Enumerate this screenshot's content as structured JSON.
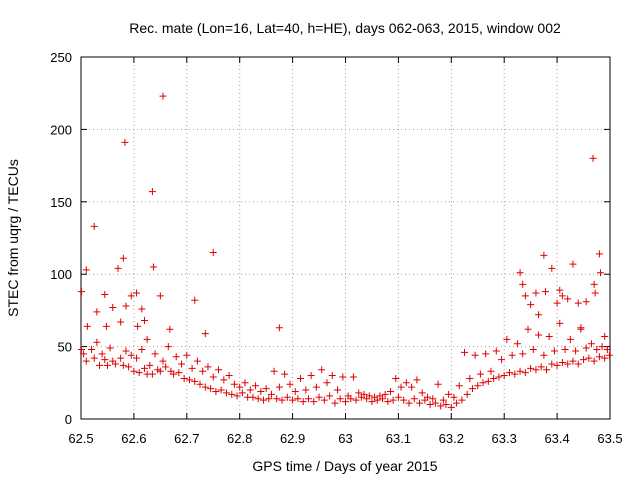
{
  "chart_data": {
    "type": "scatter",
    "title": "Rec. mate (Lon=16, Lat=40, h=HE), days 062-063, 2015, window 002",
    "xlabel": "GPS time / Days of year 2015",
    "ylabel": "STEC from uqrg / TECUs",
    "xlim": [
      62.5,
      63.5
    ],
    "ylim": [
      0,
      250
    ],
    "xticks": [
      62.5,
      62.6,
      62.7,
      62.8,
      62.9,
      63.0,
      63.1,
      63.2,
      63.3,
      63.4,
      63.5
    ],
    "xtick_labels": [
      "62.5",
      "62.6",
      "62.7",
      "62.8",
      "62.9",
      "63",
      "63.1",
      "63.2",
      "63.3",
      "63.4",
      "63.5"
    ],
    "yticks": [
      0,
      50,
      100,
      150,
      200,
      250
    ],
    "ytick_labels": [
      "0",
      "50",
      "100",
      "150",
      "200",
      "250"
    ],
    "grid": true,
    "marker": "+",
    "color": "#e00000",
    "points": [
      [
        62.501,
        88
      ],
      [
        62.51,
        103
      ],
      [
        62.512,
        64
      ],
      [
        62.525,
        133
      ],
      [
        62.53,
        74
      ],
      [
        62.545,
        86
      ],
      [
        62.548,
        64
      ],
      [
        62.56,
        77
      ],
      [
        62.57,
        104
      ],
      [
        62.575,
        67
      ],
      [
        62.58,
        111
      ],
      [
        62.583,
        191
      ],
      [
        62.585,
        78
      ],
      [
        62.595,
        85
      ],
      [
        62.605,
        87
      ],
      [
        62.607,
        64
      ],
      [
        62.615,
        76
      ],
      [
        62.62,
        68
      ],
      [
        62.625,
        55
      ],
      [
        62.635,
        157
      ],
      [
        62.637,
        105
      ],
      [
        62.65,
        85
      ],
      [
        62.655,
        223
      ],
      [
        62.668,
        62
      ],
      [
        62.715,
        82
      ],
      [
        62.735,
        59
      ],
      [
        62.75,
        115
      ],
      [
        62.875,
        63
      ],
      [
        63.33,
        101
      ],
      [
        63.335,
        93
      ],
      [
        63.34,
        85
      ],
      [
        63.35,
        79
      ],
      [
        63.36,
        87
      ],
      [
        63.365,
        72
      ],
      [
        63.375,
        113
      ],
      [
        63.378,
        88
      ],
      [
        63.39,
        104
      ],
      [
        63.4,
        80
      ],
      [
        63.405,
        89
      ],
      [
        63.41,
        85
      ],
      [
        63.42,
        83
      ],
      [
        63.43,
        107
      ],
      [
        63.44,
        80
      ],
      [
        63.445,
        63
      ],
      [
        63.455,
        81
      ],
      [
        63.468,
        180
      ],
      [
        63.47,
        93
      ],
      [
        63.472,
        87
      ],
      [
        63.48,
        114
      ],
      [
        63.482,
        101
      ],
      [
        63.49,
        57
      ],
      [
        62.501,
        48
      ],
      [
        62.505,
        45
      ],
      [
        62.51,
        40
      ],
      [
        62.52,
        48
      ],
      [
        62.525,
        42
      ],
      [
        62.53,
        53
      ],
      [
        62.535,
        37
      ],
      [
        62.54,
        45
      ],
      [
        62.545,
        41
      ],
      [
        62.55,
        37
      ],
      [
        62.555,
        49
      ],
      [
        62.56,
        40
      ],
      [
        62.565,
        38
      ],
      [
        62.575,
        42
      ],
      [
        62.58,
        37
      ],
      [
        62.585,
        47
      ],
      [
        62.59,
        36
      ],
      [
        62.595,
        44
      ],
      [
        62.6,
        33
      ],
      [
        62.605,
        42
      ],
      [
        62.61,
        32
      ],
      [
        62.615,
        48
      ],
      [
        62.62,
        35
      ],
      [
        62.625,
        31
      ],
      [
        62.63,
        37
      ],
      [
        62.635,
        31
      ],
      [
        62.64,
        45
      ],
      [
        62.645,
        34
      ],
      [
        62.65,
        33
      ],
      [
        62.655,
        40
      ],
      [
        62.66,
        36
      ],
      [
        62.665,
        50
      ],
      [
        62.67,
        33
      ],
      [
        62.675,
        31
      ],
      [
        62.68,
        43
      ],
      [
        62.685,
        32
      ],
      [
        62.69,
        38
      ],
      [
        62.695,
        28
      ],
      [
        62.7,
        44
      ],
      [
        62.705,
        27
      ],
      [
        62.71,
        35
      ],
      [
        62.715,
        26
      ],
      [
        62.72,
        40
      ],
      [
        62.725,
        24
      ],
      [
        62.73,
        33
      ],
      [
        62.735,
        22
      ],
      [
        62.74,
        36
      ],
      [
        62.745,
        21
      ],
      [
        62.75,
        29
      ],
      [
        62.755,
        19
      ],
      [
        62.76,
        34
      ],
      [
        62.765,
        20
      ],
      [
        62.77,
        27
      ],
      [
        62.775,
        18
      ],
      [
        62.78,
        30
      ],
      [
        62.785,
        17
      ],
      [
        62.79,
        24
      ],
      [
        62.795,
        16
      ],
      [
        62.8,
        22
      ],
      [
        62.805,
        18
      ],
      [
        62.81,
        25
      ],
      [
        62.815,
        15
      ],
      [
        62.82,
        20
      ],
      [
        62.825,
        15
      ],
      [
        62.83,
        23
      ],
      [
        62.835,
        14
      ],
      [
        62.84,
        19
      ],
      [
        62.845,
        13
      ],
      [
        62.85,
        21
      ],
      [
        62.855,
        14
      ],
      [
        62.86,
        17
      ],
      [
        62.865,
        33
      ],
      [
        62.87,
        14
      ],
      [
        62.875,
        22
      ],
      [
        62.88,
        13
      ],
      [
        62.885,
        31
      ],
      [
        62.89,
        15
      ],
      [
        62.895,
        24
      ],
      [
        62.9,
        13
      ],
      [
        62.905,
        19
      ],
      [
        62.91,
        14
      ],
      [
        62.915,
        28
      ],
      [
        62.92,
        12
      ],
      [
        62.925,
        20
      ],
      [
        62.93,
        14
      ],
      [
        62.935,
        30
      ],
      [
        62.94,
        12
      ],
      [
        62.945,
        22
      ],
      [
        62.95,
        15
      ],
      [
        62.955,
        34
      ],
      [
        62.96,
        13
      ],
      [
        62.965,
        25
      ],
      [
        62.97,
        16
      ],
      [
        62.975,
        30
      ],
      [
        62.98,
        11
      ],
      [
        62.985,
        20
      ],
      [
        62.99,
        14
      ],
      [
        62.995,
        29
      ],
      [
        63.0,
        12
      ],
      [
        63.005,
        16
      ],
      [
        63.01,
        14
      ],
      [
        63.015,
        29
      ],
      [
        63.02,
        13
      ],
      [
        63.025,
        18
      ],
      [
        63.03,
        15
      ],
      [
        63.035,
        17
      ],
      [
        63.04,
        14
      ],
      [
        63.045,
        16
      ],
      [
        63.05,
        12
      ],
      [
        63.055,
        15
      ],
      [
        63.06,
        13
      ],
      [
        63.065,
        16
      ],
      [
        63.07,
        14
      ],
      [
        63.075,
        17
      ],
      [
        63.08,
        12
      ],
      [
        63.085,
        19
      ],
      [
        63.09,
        13
      ],
      [
        63.095,
        28
      ],
      [
        63.1,
        15
      ],
      [
        63.105,
        22
      ],
      [
        63.11,
        13
      ],
      [
        63.115,
        25
      ],
      [
        63.12,
        11
      ],
      [
        63.125,
        22
      ],
      [
        63.13,
        14
      ],
      [
        63.135,
        27
      ],
      [
        63.14,
        11
      ],
      [
        63.145,
        18
      ],
      [
        63.15,
        13
      ],
      [
        63.155,
        15
      ],
      [
        63.16,
        10
      ],
      [
        63.165,
        14
      ],
      [
        63.17,
        11
      ],
      [
        63.175,
        24
      ],
      [
        63.18,
        9
      ],
      [
        63.185,
        13
      ],
      [
        63.19,
        10
      ],
      [
        63.195,
        17
      ],
      [
        63.2,
        8
      ],
      [
        63.205,
        15
      ],
      [
        63.21,
        11
      ],
      [
        63.215,
        23
      ],
      [
        63.22,
        13
      ],
      [
        63.225,
        46
      ],
      [
        63.23,
        17
      ],
      [
        63.235,
        28
      ],
      [
        63.24,
        21
      ],
      [
        63.245,
        44
      ],
      [
        63.25,
        23
      ],
      [
        63.255,
        31
      ],
      [
        63.26,
        25
      ],
      [
        63.265,
        45
      ],
      [
        63.27,
        26
      ],
      [
        63.275,
        33
      ],
      [
        63.28,
        28
      ],
      [
        63.285,
        47
      ],
      [
        63.29,
        29
      ],
      [
        63.295,
        41
      ],
      [
        63.3,
        30
      ],
      [
        63.305,
        55
      ],
      [
        63.31,
        32
      ],
      [
        63.315,
        44
      ],
      [
        63.32,
        31
      ],
      [
        63.325,
        52
      ],
      [
        63.33,
        33
      ],
      [
        63.335,
        45
      ],
      [
        63.34,
        32
      ],
      [
        63.345,
        62
      ],
      [
        63.35,
        35
      ],
      [
        63.355,
        48
      ],
      [
        63.36,
        34
      ],
      [
        63.365,
        58
      ],
      [
        63.37,
        36
      ],
      [
        63.375,
        44
      ],
      [
        63.38,
        34
      ],
      [
        63.385,
        57
      ],
      [
        63.39,
        38
      ],
      [
        63.395,
        47
      ],
      [
        63.4,
        37
      ],
      [
        63.405,
        66
      ],
      [
        63.41,
        39
      ],
      [
        63.415,
        48
      ],
      [
        63.42,
        38
      ],
      [
        63.425,
        55
      ],
      [
        63.43,
        40
      ],
      [
        63.435,
        47
      ],
      [
        63.44,
        38
      ],
      [
        63.445,
        62
      ],
      [
        63.45,
        41
      ],
      [
        63.455,
        49
      ],
      [
        63.46,
        42
      ],
      [
        63.465,
        52
      ],
      [
        63.47,
        40
      ],
      [
        63.475,
        48
      ],
      [
        63.48,
        43
      ],
      [
        63.485,
        50
      ],
      [
        63.49,
        42
      ],
      [
        63.495,
        48
      ],
      [
        63.499,
        44
      ]
    ]
  }
}
